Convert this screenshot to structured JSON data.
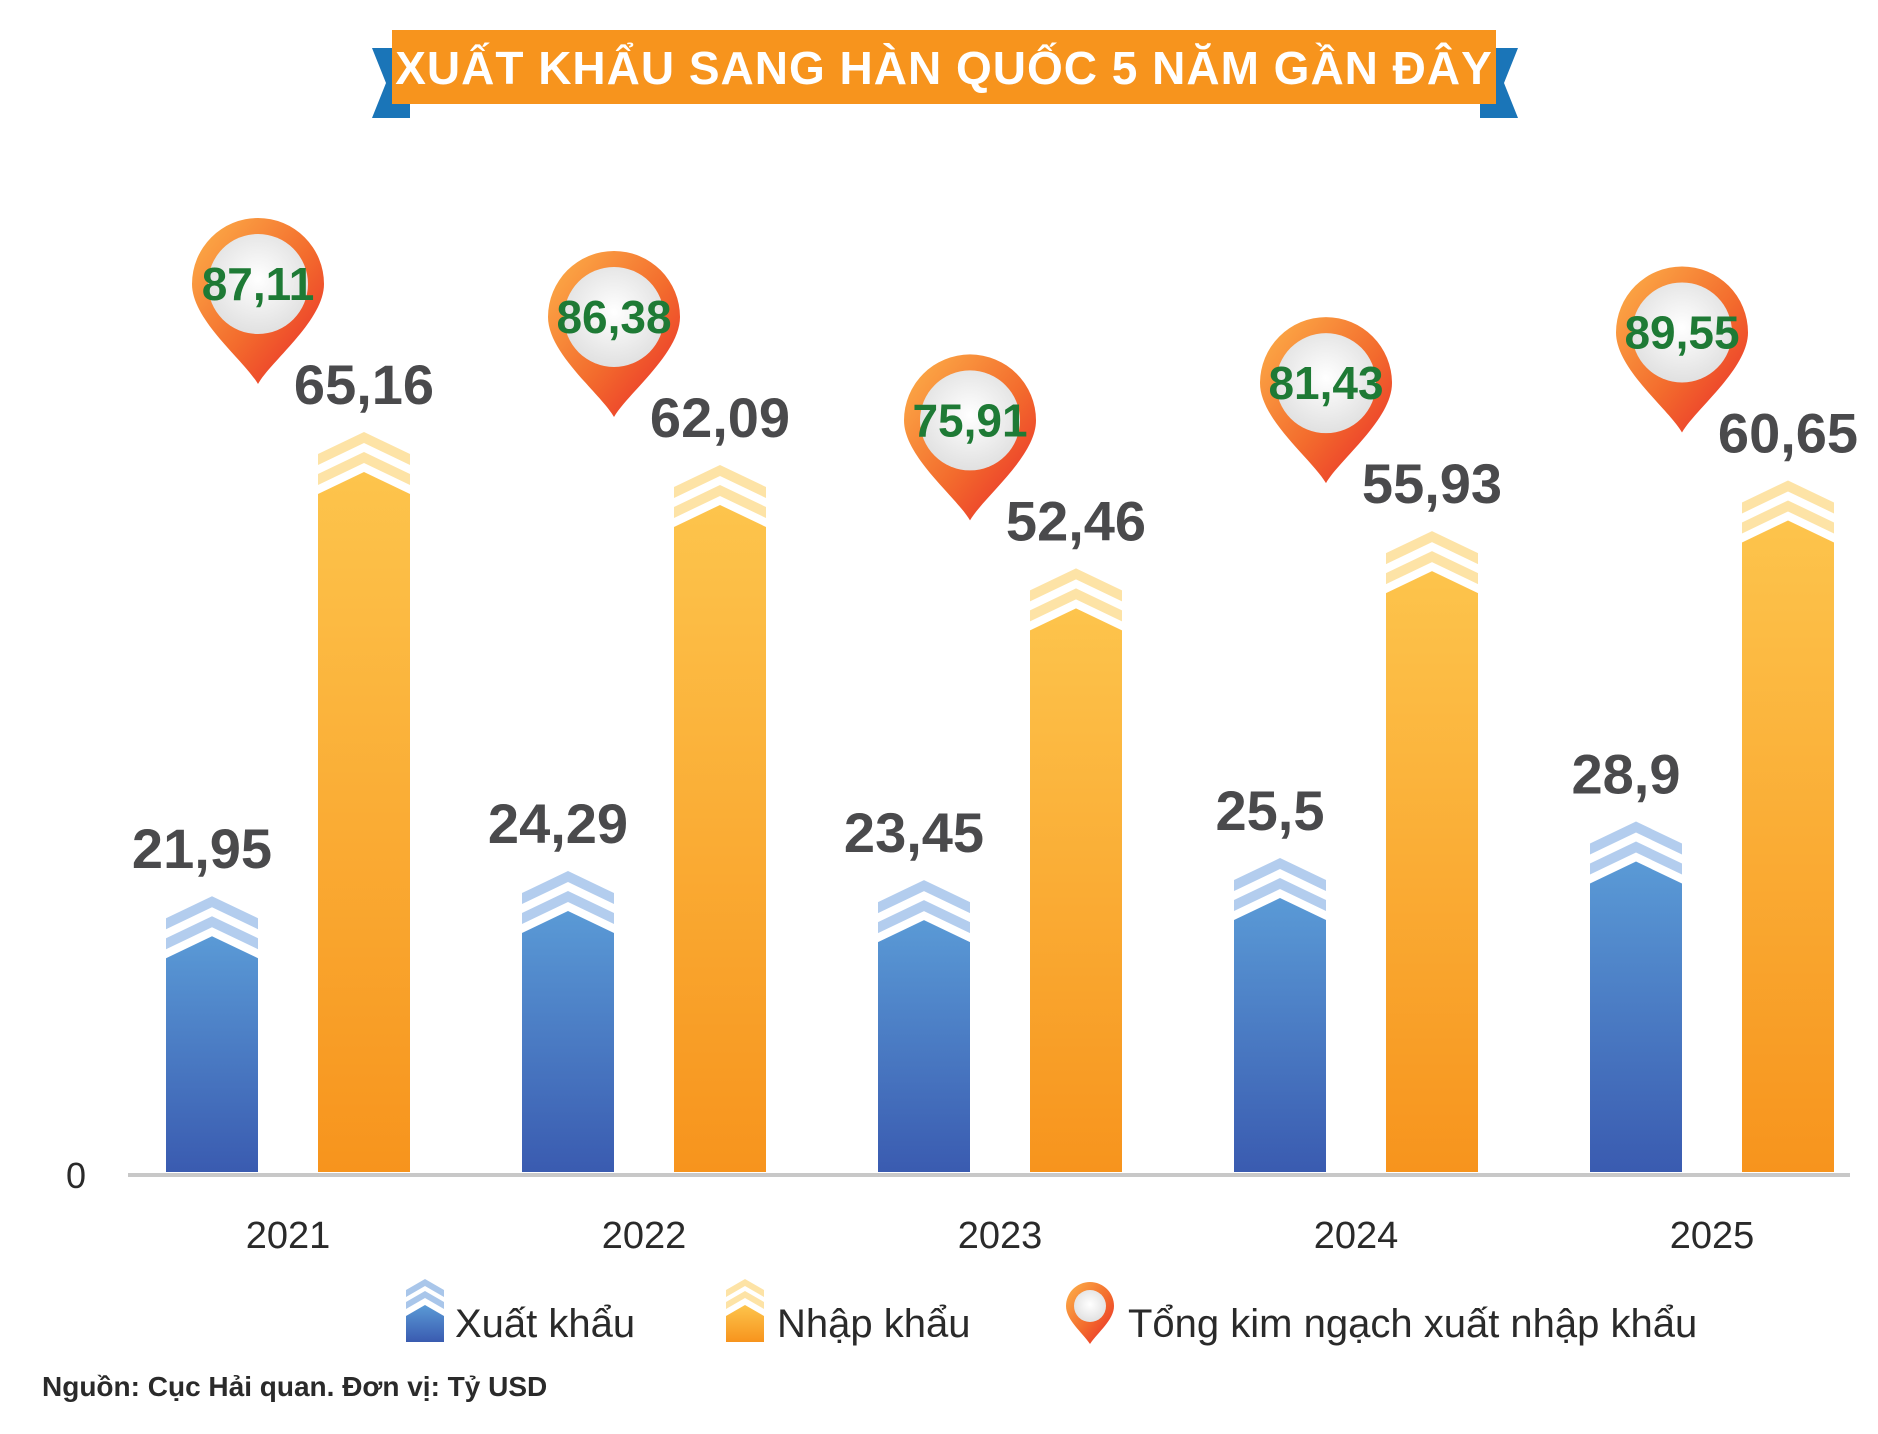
{
  "chart_data": {
    "type": "bar",
    "title": "XUẤT KHẨU SANG HÀN QUỐC 5 NĂM GẦN ĐÂY",
    "categories": [
      "2021",
      "2022",
      "2023",
      "2024",
      "2025"
    ],
    "series": [
      {
        "name": "Xuất khẩu",
        "values": [
          21.95,
          24.29,
          23.45,
          25.5,
          28.9
        ],
        "labels": [
          "21,95",
          "24,29",
          "23,45",
          "25,5",
          "28,9"
        ],
        "color": "#3d63b3"
      },
      {
        "name": "Nhập khẩu",
        "values": [
          65.16,
          62.09,
          52.46,
          55.93,
          60.65
        ],
        "labels": [
          "65,16",
          "62,09",
          "52,46",
          "55,93",
          "60,65"
        ],
        "color": "#f7941d"
      }
    ],
    "totals": {
      "name": "Tổng kim ngạch xuất nhập khẩu",
      "values": [
        87.11,
        86.38,
        75.91,
        81.43,
        89.55
      ],
      "labels": [
        "87,11",
        "86,38",
        "75,91",
        "81,43",
        "89,55"
      ]
    },
    "y_zero_label": "0",
    "ylim": [
      0,
      65.16
    ],
    "grid": false,
    "legend_position": "bottom",
    "source": "Nguồn: Cục Hải quan. Đơn vị: Tỷ USD"
  },
  "colors": {
    "title_band": "#f7941d",
    "title_ribbon": "#1a75b8",
    "export_top": "#5a9ad6",
    "export_bottom": "#3a5bb0",
    "import_top": "#fdc44c",
    "import_bottom": "#f7941d",
    "total_value": "#1e7a35",
    "bar_value": "#4a4a4c",
    "axis": "#c8c8c8"
  }
}
